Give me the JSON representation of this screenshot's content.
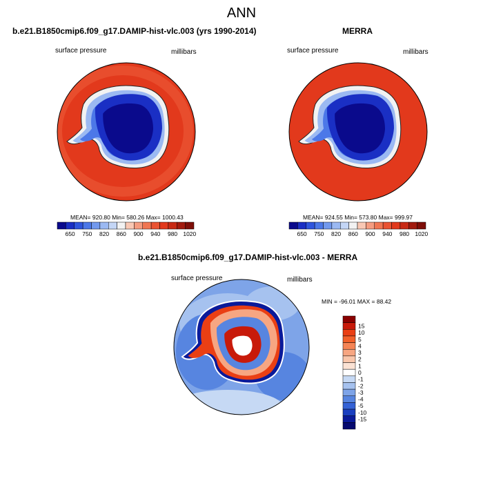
{
  "main_title": "ANN",
  "panels": [
    {
      "title": "b.e21.B1850cmip6.f09_g17.DAMIP-hist-vlc.003 (yrs 1990-2014)",
      "variable": "surface pressure",
      "units": "millibars",
      "stats": "MEAN= 920.80   Min= 580.26   Max= 1000.43"
    },
    {
      "title": "MERRA",
      "variable": "surface pressure",
      "units": "millibars",
      "stats": "MEAN= 924.55   Min= 573.80   Max= 999.97"
    },
    {
      "title": "b.e21.B1850cmip6.f09_g17.DAMIP-hist-vlc.003 - MERRA",
      "variable": "surface pressure",
      "units": "millibars",
      "stats": "MIN = -96.01 MAX =  88.42"
    }
  ],
  "colorbar_abs": {
    "labels": [
      "650",
      "750",
      "820",
      "860",
      "900",
      "940",
      "980",
      "1020"
    ],
    "colors": [
      "#0a0a8c",
      "#1a2fc4",
      "#2f55dd",
      "#4c78e8",
      "#7299ee",
      "#9bb9f2",
      "#c4d6f6",
      "#f2f2f2",
      "#f9c8b4",
      "#f59c80",
      "#f07652",
      "#ea5332",
      "#e2391c",
      "#c82a14",
      "#a11a0e",
      "#7e0e08"
    ]
  },
  "colorbar_diff": {
    "labels": [
      "15",
      "10",
      "5",
      "4",
      "3",
      "2",
      "1",
      "0",
      "-1",
      "-2",
      "-3",
      "-4",
      "-5",
      "-10",
      "-15"
    ],
    "colors": [
      "#8a0000",
      "#c81a0a",
      "#ea3f14",
      "#f2602a",
      "#f58556",
      "#f7a682",
      "#f9c6ab",
      "#fbe2d4",
      "#ffffff",
      "#c6d9f4",
      "#a6c2ef",
      "#7ea4e8",
      "#5785e0",
      "#3462d6",
      "#1a3fc0",
      "#0a1a9a",
      "#060a70"
    ]
  }
}
